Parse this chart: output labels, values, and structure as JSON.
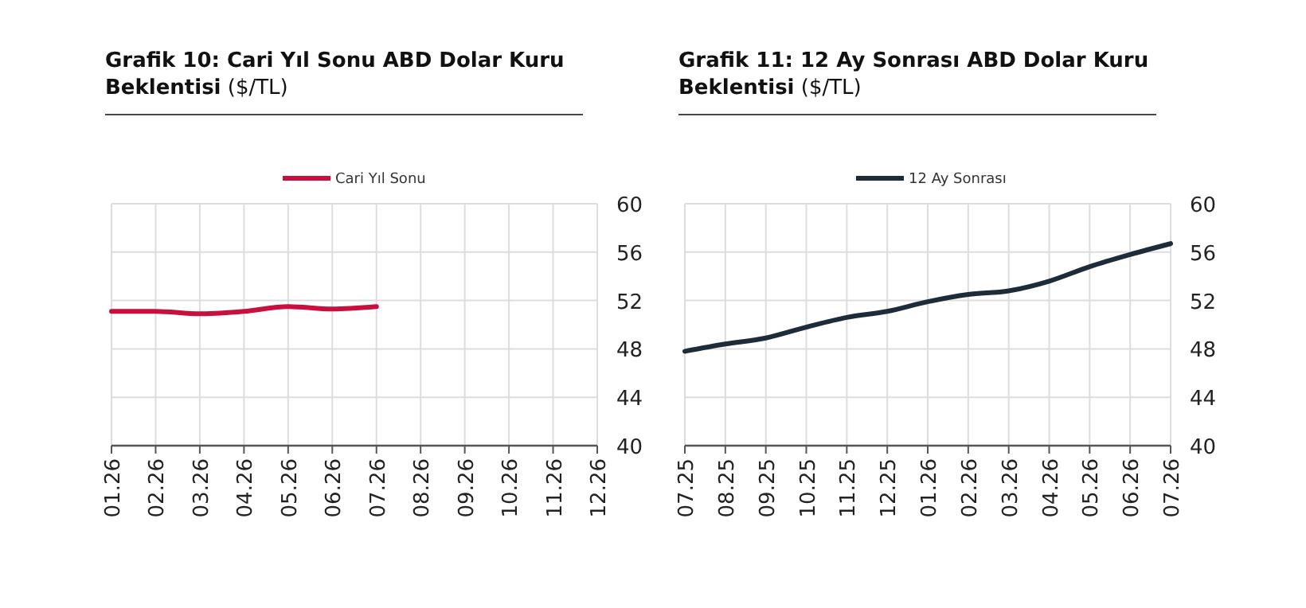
{
  "chart_data": [
    {
      "type": "line",
      "title": "Grafik 10: Cari Yıl Sonu ABD Dolar Kuru Beklentisi",
      "subtitle": "($/TL)",
      "categories": [
        "01.26",
        "02.26",
        "03.26",
        "04.26",
        "05.26",
        "06.26",
        "07.26",
        "08.26",
        "09.26",
        "10.26",
        "11.26",
        "12.26"
      ],
      "series": [
        {
          "name": "Cari Yıl Sonu",
          "color": "#c8103e",
          "values": [
            51.1,
            51.1,
            50.9,
            51.1,
            51.5,
            51.3,
            51.5,
            null,
            null,
            null,
            null,
            null
          ]
        }
      ],
      "ylim": [
        40,
        60
      ],
      "yticks": [
        40,
        44,
        48,
        52,
        56,
        60
      ],
      "grid": true,
      "legend": "top"
    },
    {
      "type": "line",
      "title": "Grafik 11: 12 Ay Sonrası ABD Dolar Kuru Beklentisi",
      "subtitle": "($/TL)",
      "categories": [
        "07.25",
        "08.25",
        "09.25",
        "10.25",
        "11.25",
        "12.25",
        "01.26",
        "02.26",
        "03.26",
        "04.26",
        "05.26",
        "06.26",
        "07.26"
      ],
      "series": [
        {
          "name": "12 Ay Sonrası",
          "color": "#1e2b3a",
          "values": [
            47.8,
            48.4,
            48.9,
            49.8,
            50.6,
            51.1,
            51.9,
            52.5,
            52.8,
            53.6,
            54.8,
            55.8,
            56.7
          ]
        }
      ],
      "ylim": [
        40,
        60
      ],
      "yticks": [
        40,
        44,
        48,
        52,
        56,
        60
      ],
      "grid": true,
      "legend": "top"
    }
  ]
}
